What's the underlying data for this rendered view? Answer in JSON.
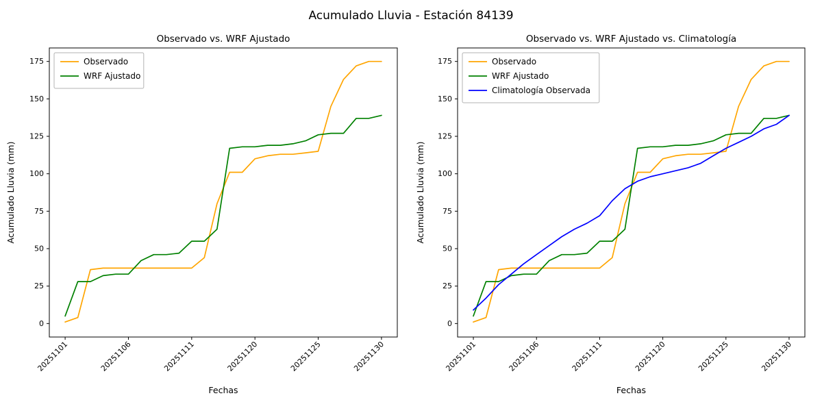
{
  "figure": {
    "suptitle": "Acumulado Lluvia - Estación 84139"
  },
  "chart_data": [
    {
      "type": "line",
      "title": "Observado vs. WRF Ajustado",
      "xlabel": "Fechas",
      "ylabel": "Acumulado Lluvia (mm)",
      "grid": false,
      "legend_position": "upper left",
      "ylim": [
        -9,
        184
      ],
      "y_ticks": [
        0,
        25,
        50,
        75,
        100,
        125,
        150,
        175
      ],
      "x": [
        "20251101",
        "20251102",
        "20251103",
        "20251104",
        "20251105",
        "20251106",
        "20251107",
        "20251108",
        "20251109",
        "20251110",
        "20251111",
        "20251116",
        "20251117",
        "20251118",
        "20251119",
        "20251120",
        "20251121",
        "20251122",
        "20251123",
        "20251124",
        "20251125",
        "20251126",
        "20251127",
        "20251128",
        "20251129",
        "20251130"
      ],
      "x_tick_indices": [
        0,
        5,
        10,
        15,
        20,
        25
      ],
      "x_tick_labels": [
        "20251101",
        "20251106",
        "20251111",
        "20251120",
        "20251125",
        "20251130"
      ],
      "series": [
        {
          "name": "Observado",
          "color": "#FFA500",
          "values": [
            1,
            4,
            36,
            37,
            37,
            37,
            37,
            37,
            37,
            37,
            37,
            44,
            80,
            101,
            101,
            110,
            112,
            113,
            113,
            114,
            115,
            145,
            163,
            172,
            175,
            175
          ]
        },
        {
          "name": "WRF Ajustado",
          "color": "#008000",
          "values": [
            5,
            28,
            28,
            32,
            33,
            33,
            42,
            46,
            46,
            47,
            55,
            55,
            63,
            117,
            118,
            118,
            119,
            119,
            120,
            122,
            126,
            127,
            127,
            137,
            137,
            139
          ]
        }
      ]
    },
    {
      "type": "line",
      "title": "Observado vs. WRF Ajustado vs. Climatología",
      "xlabel": "Fechas",
      "ylabel": "Acumulado Lluvia (mm)",
      "grid": false,
      "legend_position": "upper left",
      "ylim": [
        -9,
        184
      ],
      "y_ticks": [
        0,
        25,
        50,
        75,
        100,
        125,
        150,
        175
      ],
      "x": [
        "20251101",
        "20251102",
        "20251103",
        "20251104",
        "20251105",
        "20251106",
        "20251107",
        "20251108",
        "20251109",
        "20251110",
        "20251111",
        "20251116",
        "20251117",
        "20251118",
        "20251119",
        "20251120",
        "20251121",
        "20251122",
        "20251123",
        "20251124",
        "20251125",
        "20251126",
        "20251127",
        "20251128",
        "20251129",
        "20251130"
      ],
      "x_tick_indices": [
        0,
        5,
        10,
        15,
        20,
        25
      ],
      "x_tick_labels": [
        "20251101",
        "20251106",
        "20251111",
        "20251120",
        "20251125",
        "20251130"
      ],
      "series": [
        {
          "name": "Observado",
          "color": "#FFA500",
          "values": [
            1,
            4,
            36,
            37,
            37,
            37,
            37,
            37,
            37,
            37,
            37,
            44,
            80,
            101,
            101,
            110,
            112,
            113,
            113,
            114,
            115,
            145,
            163,
            172,
            175,
            175
          ]
        },
        {
          "name": "WRF Ajustado",
          "color": "#008000",
          "values": [
            5,
            28,
            28,
            32,
            33,
            33,
            42,
            46,
            46,
            47,
            55,
            55,
            63,
            117,
            118,
            118,
            119,
            119,
            120,
            122,
            126,
            127,
            127,
            137,
            137,
            139
          ]
        },
        {
          "name": "Climatología Observada",
          "color": "#0000FF",
          "values": [
            9,
            17,
            26,
            33,
            40,
            46,
            52,
            58,
            63,
            67,
            72,
            82,
            90,
            95,
            98,
            100,
            102,
            104,
            107,
            112,
            117,
            121,
            125,
            130,
            133,
            139
          ]
        }
      ]
    }
  ]
}
